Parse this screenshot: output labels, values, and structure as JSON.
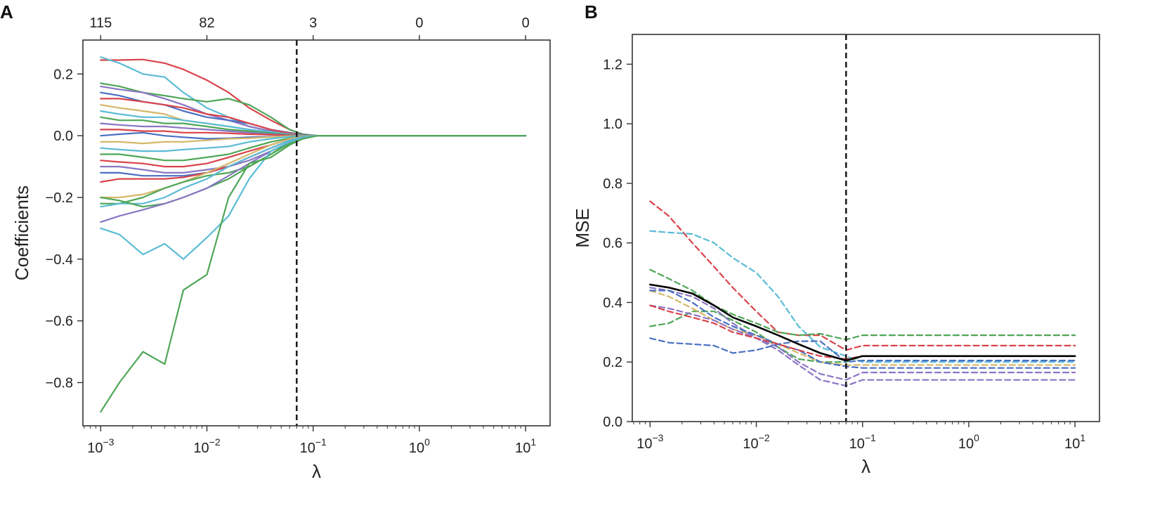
{
  "chart_data": [
    {
      "panel_label": "A",
      "type": "line",
      "xscale": "log",
      "xlabel": "λ",
      "ylabel": "Coefficients",
      "xlim": [
        0.00068,
        17
      ],
      "ylim": [
        -0.94,
        0.31
      ],
      "x_ticks": [
        0.001,
        0.01,
        0.1,
        1,
        10
      ],
      "x_tick_labels": [
        {
          "base": "10",
          "exp": "−3"
        },
        {
          "base": "10",
          "exp": "−2"
        },
        {
          "base": "10",
          "exp": "−1"
        },
        {
          "base": "10",
          "exp": "0"
        },
        {
          "base": "10",
          "exp": "1"
        }
      ],
      "y_ticks": [
        0.2,
        0.0,
        -0.2,
        -0.4,
        -0.6,
        -0.8
      ],
      "y_tick_labels": [
        "0.2",
        "0.0",
        "−0.2",
        "−0.4",
        "−0.6",
        "−0.8"
      ],
      "top_ticks": [
        0.001,
        0.01,
        0.1,
        1,
        10
      ],
      "top_tick_labels": [
        "115",
        "82",
        "3",
        "0",
        "0"
      ],
      "vline": {
        "x": 0.07,
        "style": "dashed"
      },
      "path_nodes": [
        0.001,
        0.0015,
        0.0025,
        0.004,
        0.006,
        0.01,
        0.016,
        0.025,
        0.04,
        0.06,
        0.08,
        0.11,
        10
      ],
      "series": [
        {
          "color": "#d9434b",
          "values": [
            0.245,
            0.245,
            0.247,
            0.235,
            0.215,
            0.18,
            0.14,
            0.09,
            0.05,
            0.02,
            0.005,
            0,
            0
          ]
        },
        {
          "color": "#5bbcd6",
          "values": [
            0.255,
            0.235,
            0.2,
            0.19,
            0.14,
            0.09,
            0.06,
            0.03,
            0.015,
            0.005,
            0.002,
            0,
            0
          ]
        },
        {
          "color": "#4fa657",
          "values": [
            0.17,
            0.16,
            0.14,
            0.13,
            0.12,
            0.11,
            0.12,
            0.1,
            0.06,
            0.02,
            0.005,
            0,
            0
          ]
        },
        {
          "color": "#8a76c4",
          "values": [
            0.16,
            0.15,
            0.14,
            0.12,
            0.1,
            0.07,
            0.05,
            0.03,
            0.015,
            0.005,
            0.002,
            0,
            0
          ]
        },
        {
          "color": "#4a6fc3",
          "values": [
            0.14,
            0.13,
            0.11,
            0.1,
            0.08,
            0.06,
            0.05,
            0.04,
            0.02,
            0.01,
            0.003,
            0,
            0
          ]
        },
        {
          "color": "#d9434b",
          "values": [
            0.12,
            0.12,
            0.11,
            0.1,
            0.09,
            0.07,
            0.06,
            0.04,
            0.02,
            0.008,
            0.002,
            0,
            0
          ]
        },
        {
          "color": "#d4b86a",
          "values": [
            0.1,
            0.09,
            0.08,
            0.07,
            0.05,
            0.04,
            0.03,
            0.02,
            0.01,
            0.004,
            0.001,
            0,
            0
          ]
        },
        {
          "color": "#5bbcd6",
          "values": [
            0.08,
            0.07,
            0.06,
            0.06,
            0.05,
            0.04,
            0.03,
            0.02,
            0.012,
            0.005,
            0.001,
            0,
            0
          ]
        },
        {
          "color": "#4fa657",
          "values": [
            0.06,
            0.05,
            0.05,
            0.04,
            0.04,
            0.03,
            0.02,
            0.015,
            0.008,
            0.003,
            0.001,
            0,
            0
          ]
        },
        {
          "color": "#8a76c4",
          "values": [
            0.04,
            0.035,
            0.03,
            0.03,
            0.025,
            0.02,
            0.015,
            0.01,
            0.005,
            0.002,
            0.001,
            0,
            0
          ]
        },
        {
          "color": "#d9434b",
          "values": [
            0.02,
            0.02,
            0.015,
            0.015,
            0.01,
            0.01,
            0.008,
            0.005,
            0.003,
            0.001,
            0,
            0,
            0
          ]
        },
        {
          "color": "#4a6fc3",
          "values": [
            0.0,
            0.005,
            0.01,
            0.0,
            -0.005,
            -0.01,
            -0.008,
            -0.005,
            -0.003,
            -0.001,
            0,
            0,
            0
          ]
        },
        {
          "color": "#d4b86a",
          "values": [
            -0.02,
            -0.02,
            -0.025,
            -0.02,
            -0.02,
            -0.015,
            -0.01,
            -0.008,
            -0.004,
            -0.001,
            0,
            0,
            0
          ]
        },
        {
          "color": "#5bbcd6",
          "values": [
            -0.04,
            -0.045,
            -0.05,
            -0.05,
            -0.045,
            -0.04,
            -0.035,
            -0.02,
            -0.01,
            -0.003,
            -0.001,
            0,
            0
          ]
        },
        {
          "color": "#4fa657",
          "values": [
            -0.06,
            -0.06,
            -0.07,
            -0.08,
            -0.08,
            -0.07,
            -0.06,
            -0.04,
            -0.02,
            -0.008,
            -0.002,
            0,
            0
          ]
        },
        {
          "color": "#d9434b",
          "values": [
            -0.08,
            -0.085,
            -0.09,
            -0.1,
            -0.1,
            -0.09,
            -0.07,
            -0.05,
            -0.03,
            -0.01,
            -0.003,
            0,
            0
          ]
        },
        {
          "color": "#8a76c4",
          "values": [
            -0.1,
            -0.1,
            -0.11,
            -0.12,
            -0.12,
            -0.11,
            -0.1,
            -0.08,
            -0.05,
            -0.02,
            -0.005,
            0,
            0
          ]
        },
        {
          "color": "#4a6fc3",
          "values": [
            -0.12,
            -0.12,
            -0.13,
            -0.13,
            -0.13,
            -0.12,
            -0.1,
            -0.07,
            -0.04,
            -0.015,
            -0.004,
            0,
            0
          ]
        },
        {
          "color": "#d9434b",
          "values": [
            -0.15,
            -0.14,
            -0.14,
            -0.14,
            -0.135,
            -0.12,
            -0.1,
            -0.07,
            -0.04,
            -0.015,
            -0.004,
            0,
            0
          ]
        },
        {
          "color": "#d4b86a",
          "values": [
            -0.2,
            -0.2,
            -0.19,
            -0.17,
            -0.15,
            -0.12,
            -0.09,
            -0.06,
            -0.03,
            -0.01,
            -0.003,
            0,
            0
          ]
        },
        {
          "color": "#4fa657",
          "values": [
            -0.22,
            -0.22,
            -0.2,
            -0.17,
            -0.15,
            -0.13,
            -0.12,
            -0.1,
            -0.06,
            -0.025,
            -0.005,
            0,
            0
          ]
        },
        {
          "color": "#5bbcd6",
          "values": [
            -0.23,
            -0.22,
            -0.22,
            -0.2,
            -0.17,
            -0.14,
            -0.1,
            -0.07,
            -0.04,
            -0.015,
            -0.004,
            0,
            0
          ]
        },
        {
          "color": "#4fa657",
          "values": [
            -0.2,
            -0.21,
            -0.23,
            -0.22,
            -0.2,
            -0.17,
            -0.14,
            -0.1,
            -0.06,
            -0.02,
            -0.005,
            0,
            0
          ]
        },
        {
          "color": "#8a76c4",
          "values": [
            -0.28,
            -0.26,
            -0.24,
            -0.22,
            -0.2,
            -0.17,
            -0.13,
            -0.09,
            -0.05,
            -0.02,
            -0.005,
            0,
            0
          ]
        },
        {
          "color": "#5bbcd6",
          "values": [
            -0.3,
            -0.32,
            -0.385,
            -0.35,
            -0.4,
            -0.33,
            -0.26,
            -0.14,
            -0.05,
            -0.02,
            -0.005,
            0,
            0
          ]
        },
        {
          "color": "#4fa657",
          "values": [
            -0.895,
            -0.8,
            -0.7,
            -0.74,
            -0.5,
            -0.45,
            -0.2,
            -0.09,
            -0.07,
            -0.03,
            -0.01,
            0,
            0
          ]
        }
      ]
    },
    {
      "panel_label": "B",
      "type": "line",
      "xscale": "log",
      "xlabel": "λ",
      "ylabel": "MSE",
      "xlim": [
        0.00068,
        17
      ],
      "ylim": [
        0.0,
        1.3
      ],
      "x_ticks": [
        0.001,
        0.01,
        0.1,
        1,
        10
      ],
      "x_tick_labels": [
        {
          "base": "10",
          "exp": "−3"
        },
        {
          "base": "10",
          "exp": "−2"
        },
        {
          "base": "10",
          "exp": "−1"
        },
        {
          "base": "10",
          "exp": "0"
        },
        {
          "base": "10",
          "exp": "1"
        }
      ],
      "y_ticks": [
        0.0,
        0.2,
        0.4,
        0.6,
        0.8,
        1.0,
        1.2
      ],
      "y_tick_labels": [
        "0.0",
        "0.2",
        "0.4",
        "0.6",
        "0.8",
        "1.0",
        "1.2"
      ],
      "vline": {
        "x": 0.07,
        "style": "dashed"
      },
      "path_nodes": [
        0.001,
        0.0015,
        0.0025,
        0.004,
        0.006,
        0.01,
        0.016,
        0.025,
        0.04,
        0.07,
        0.1,
        0.13,
        10
      ],
      "series": [
        {
          "color": "#d9434b",
          "style": "dashed",
          "values": [
            0.74,
            0.69,
            0.6,
            0.52,
            0.45,
            0.37,
            0.3,
            0.29,
            0.29,
            0.24,
            0.255,
            0.255,
            0.255
          ]
        },
        {
          "color": "#5bbcd6",
          "style": "dashed",
          "values": [
            0.64,
            0.635,
            0.63,
            0.6,
            0.55,
            0.5,
            0.42,
            0.32,
            0.25,
            0.22,
            0.2,
            0.2,
            0.2
          ]
        },
        {
          "color": "#4fa657",
          "style": "dashed",
          "values": [
            0.51,
            0.48,
            0.44,
            0.39,
            0.36,
            0.33,
            0.3,
            0.29,
            0.295,
            0.275,
            0.29,
            0.29,
            0.29
          ]
        },
        {
          "color": "#4fa657",
          "style": "dashed",
          "values": [
            0.32,
            0.33,
            0.37,
            0.37,
            0.34,
            0.3,
            0.25,
            0.21,
            0.2,
            0.2,
            0.22,
            0.22,
            0.22
          ]
        },
        {
          "color": "#d4b86a",
          "style": "dashed",
          "values": [
            0.44,
            0.42,
            0.38,
            0.34,
            0.31,
            0.29,
            0.26,
            0.23,
            0.2,
            0.19,
            0.19,
            0.19,
            0.19
          ]
        },
        {
          "color": "#8a76c4",
          "style": "dashed",
          "values": [
            0.45,
            0.44,
            0.42,
            0.38,
            0.33,
            0.28,
            0.25,
            0.2,
            0.16,
            0.14,
            0.165,
            0.165,
            0.165
          ]
        },
        {
          "color": "#8a76c4",
          "style": "dashed",
          "values": [
            0.39,
            0.38,
            0.36,
            0.34,
            0.31,
            0.28,
            0.24,
            0.19,
            0.14,
            0.12,
            0.14,
            0.14,
            0.14
          ]
        },
        {
          "color": "#4a6fc3",
          "style": "dashed",
          "values": [
            0.44,
            0.44,
            0.4,
            0.35,
            0.32,
            0.29,
            0.26,
            0.24,
            0.2,
            0.185,
            0.18,
            0.18,
            0.18
          ]
        },
        {
          "color": "#4a6fc3",
          "style": "dashed",
          "values": [
            0.28,
            0.265,
            0.26,
            0.255,
            0.23,
            0.24,
            0.26,
            0.27,
            0.27,
            0.2,
            0.205,
            0.205,
            0.205
          ]
        },
        {
          "color": "#d9434b",
          "style": "dashed",
          "values": [
            0.39,
            0.37,
            0.35,
            0.33,
            0.3,
            0.28,
            0.26,
            0.24,
            0.22,
            0.21,
            0.22,
            0.22,
            0.22
          ]
        },
        {
          "color": "#000000",
          "style": "solid",
          "values": [
            0.46,
            0.45,
            0.43,
            0.39,
            0.35,
            0.32,
            0.29,
            0.26,
            0.23,
            0.205,
            0.22,
            0.22,
            0.22
          ]
        }
      ]
    }
  ]
}
